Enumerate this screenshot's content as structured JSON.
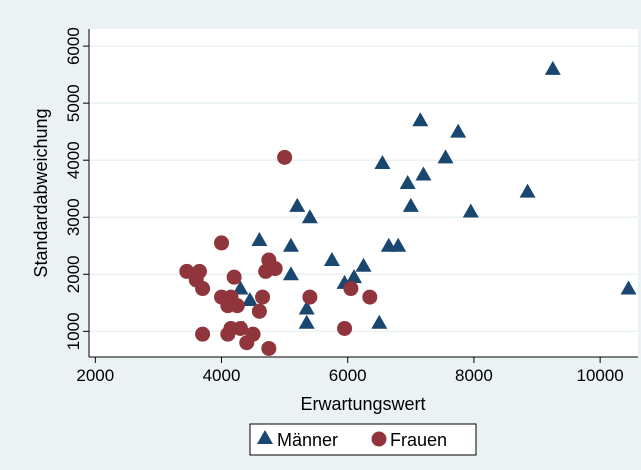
{
  "chart_data": {
    "type": "scatter",
    "xlabel": "Erwartungswert",
    "ylabel": "Standardabweichung",
    "xlim": [
      1900,
      10600
    ],
    "ylim": [
      550,
      6300
    ],
    "xticks": [
      2000,
      4000,
      6000,
      8000,
      10000
    ],
    "yticks": [
      1000,
      2000,
      3000,
      4000,
      5000,
      6000
    ],
    "grid": "horizontal",
    "legend_position": "bottom",
    "series": [
      {
        "name": "Männer",
        "marker": "triangle",
        "color": "#1a476f",
        "points": [
          [
            9250,
            5600
          ],
          [
            7150,
            4700
          ],
          [
            7750,
            4500
          ],
          [
            7550,
            4050
          ],
          [
            6550,
            3950
          ],
          [
            7200,
            3750
          ],
          [
            6950,
            3600
          ],
          [
            8850,
            3450
          ],
          [
            7000,
            3200
          ],
          [
            7950,
            3100
          ],
          [
            5200,
            3200
          ],
          [
            5400,
            3000
          ],
          [
            4600,
            2600
          ],
          [
            5100,
            2500
          ],
          [
            6650,
            2500
          ],
          [
            6800,
            2500
          ],
          [
            5750,
            2250
          ],
          [
            6250,
            2150
          ],
          [
            5100,
            2000
          ],
          [
            6100,
            1950
          ],
          [
            5950,
            1850
          ],
          [
            10450,
            1750
          ],
          [
            4300,
            1750
          ],
          [
            4450,
            1550
          ],
          [
            5350,
            1400
          ],
          [
            5350,
            1150
          ],
          [
            6500,
            1150
          ],
          [
            4350,
            1050
          ]
        ]
      },
      {
        "name": "Frauen",
        "marker": "circle",
        "color": "#90353b",
        "points": [
          [
            5000,
            4050
          ],
          [
            4000,
            2550
          ],
          [
            4750,
            2250
          ],
          [
            4850,
            2100
          ],
          [
            4700,
            2050
          ],
          [
            3450,
            2050
          ],
          [
            3650,
            2050
          ],
          [
            4200,
            1950
          ],
          [
            3600,
            1900
          ],
          [
            3700,
            1750
          ],
          [
            6050,
            1750
          ],
          [
            4000,
            1600
          ],
          [
            4150,
            1600
          ],
          [
            4650,
            1600
          ],
          [
            5400,
            1600
          ],
          [
            6350,
            1600
          ],
          [
            4100,
            1450
          ],
          [
            4250,
            1450
          ],
          [
            4600,
            1350
          ],
          [
            4150,
            1050
          ],
          [
            4300,
            1050
          ],
          [
            5950,
            1050
          ],
          [
            3700,
            950
          ],
          [
            4100,
            950
          ],
          [
            4500,
            950
          ],
          [
            4400,
            800
          ],
          [
            4750,
            700
          ]
        ]
      }
    ]
  },
  "colors": {
    "background": "#eaf2f3",
    "plot_background": "#ffffff",
    "grid": "#eaf2f3",
    "maenner": "#1a476f",
    "frauen": "#90353b"
  }
}
